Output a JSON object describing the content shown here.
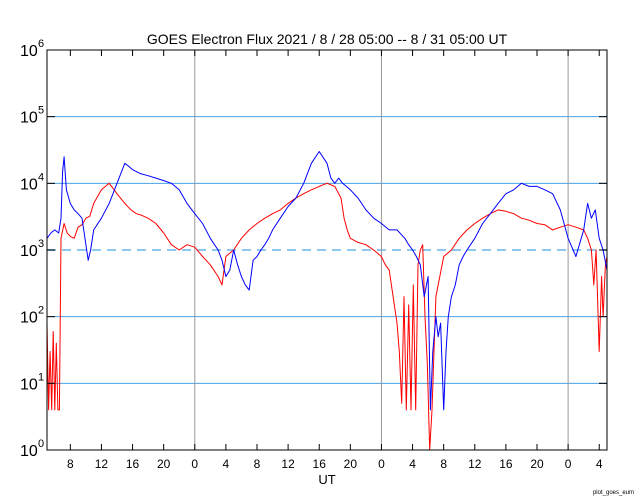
{
  "chart_data": {
    "type": "line",
    "title": "GOES Electron Flux   2021 /  8 / 28   05:00 --  8 / 31   05:00   UT",
    "xlabel": "UT",
    "ylabel": "",
    "yscale": "log",
    "ylim": [
      1,
      1000000
    ],
    "xlim_hours": [
      0,
      72
    ],
    "y_ticks": [
      {
        "base": "10",
        "exp": "0",
        "value": 1
      },
      {
        "base": "10",
        "exp": "1",
        "value": 10
      },
      {
        "base": "10",
        "exp": "2",
        "value": 100
      },
      {
        "base": "10",
        "exp": "3",
        "value": 1000
      },
      {
        "base": "10",
        "exp": "4",
        "value": 10000
      },
      {
        "base": "10",
        "exp": "5",
        "value": 100000
      },
      {
        "base": "10",
        "exp": "6",
        "value": 1000000
      }
    ],
    "x_ticks": [
      {
        "hour": 3,
        "label": "8"
      },
      {
        "hour": 7,
        "label": "12"
      },
      {
        "hour": 11,
        "label": "16"
      },
      {
        "hour": 15,
        "label": "20"
      },
      {
        "hour": 19,
        "label": "0"
      },
      {
        "hour": 23,
        "label": "4"
      },
      {
        "hour": 27,
        "label": "8"
      },
      {
        "hour": 31,
        "label": "12"
      },
      {
        "hour": 35,
        "label": "16"
      },
      {
        "hour": 39,
        "label": "20"
      },
      {
        "hour": 43,
        "label": "0"
      },
      {
        "hour": 47,
        "label": "4"
      },
      {
        "hour": 51,
        "label": "8"
      },
      {
        "hour": 55,
        "label": "12"
      },
      {
        "hour": 59,
        "label": "16"
      },
      {
        "hour": 63,
        "label": "20"
      },
      {
        "hour": 67,
        "label": "0"
      },
      {
        "hour": 71,
        "label": "4"
      }
    ],
    "day_boundaries_hours": [
      19,
      43,
      67
    ],
    "gridlines_y": [
      10,
      100,
      10000,
      100000
    ],
    "threshold": {
      "value": 1000,
      "style": "dashed"
    },
    "colors": {
      "series1": "#ff0000",
      "series2": "#0000ff",
      "grid": "#4aa3e6",
      "threshold": "#8ec8ee",
      "day_line": "#999999"
    },
    "series": [
      {
        "color": "#ff0000",
        "x": [
          0.0,
          0.2,
          0.4,
          0.6,
          0.8,
          1.0,
          1.2,
          1.4,
          1.6,
          1.8,
          2.2,
          2.6,
          3.0,
          3.5,
          4.0,
          4.5,
          5.0,
          5.5,
          6.0,
          7.0,
          8.0,
          9.0,
          10.0,
          10.8,
          11.5,
          12.2,
          13.0,
          14.0,
          15.0,
          16.0,
          17.0,
          18.0,
          19.0,
          20.0,
          21.0,
          22.0,
          22.5,
          23.0,
          23.5,
          24.0,
          25.0,
          26.0,
          27.0,
          28.0,
          29.0,
          30.0,
          31.0,
          32.0,
          33.0,
          34.0,
          35.0,
          36.0,
          37.0,
          37.8,
          38.2,
          38.6,
          39.0,
          40.0,
          41.0,
          42.0,
          43.0,
          43.5,
          44.0,
          44.5,
          45.0,
          45.3,
          45.6,
          45.9,
          46.2,
          46.5,
          46.8,
          47.1,
          47.4,
          47.7,
          48.0,
          48.3,
          48.6,
          48.9,
          49.2,
          49.5,
          50.0,
          51.0,
          52.0,
          53.0,
          54.0,
          55.0,
          56.0,
          57.0,
          58.0,
          59.0,
          60.0,
          61.0,
          62.0,
          63.0,
          64.0,
          65.0,
          66.0,
          67.0,
          68.0,
          69.0,
          69.5,
          70.0,
          70.3,
          70.6,
          71.0,
          71.3,
          71.5,
          71.8,
          72.0
        ],
        "values": [
          80,
          4,
          30,
          4,
          60,
          4,
          40,
          4,
          4,
          1500,
          2500,
          1800,
          1600,
          1500,
          2200,
          2400,
          3000,
          3200,
          5000,
          8000,
          10000,
          7000,
          5000,
          4000,
          3500,
          3300,
          3000,
          2500,
          1800,
          1200,
          1000,
          1200,
          1100,
          800,
          600,
          400,
          300,
          800,
          900,
          1000,
          1500,
          2000,
          2500,
          3000,
          3500,
          4000,
          5000,
          6000,
          7000,
          8000,
          9000,
          10000,
          9000,
          6000,
          3000,
          2000,
          1500,
          1300,
          1200,
          1000,
          800,
          600,
          500,
          200,
          80,
          30,
          5,
          200,
          4,
          150,
          4,
          300,
          4,
          600,
          1000,
          1200,
          100,
          20,
          1,
          4,
          200,
          800,
          1000,
          1500,
          2000,
          2500,
          3000,
          3500,
          4000,
          3800,
          3500,
          3000,
          2800,
          2500,
          2400,
          2000,
          2200,
          2400,
          2200,
          2000,
          1500,
          1000,
          300,
          1000,
          30,
          400,
          100,
          600,
          800
        ]
      },
      {
        "color": "#0000ff",
        "x": [
          0.0,
          0.5,
          1.0,
          1.5,
          1.8,
          2.0,
          2.2,
          2.5,
          3.0,
          3.5,
          4.0,
          4.5,
          5.0,
          5.3,
          5.6,
          6.0,
          7.0,
          8.0,
          9.0,
          10.0,
          10.5,
          11.0,
          12.0,
          13.0,
          14.0,
          15.0,
          16.0,
          17.0,
          18.0,
          19.0,
          20.0,
          21.0,
          22.0,
          22.5,
          23.0,
          23.5,
          24.0,
          24.5,
          25.0,
          25.5,
          26.0,
          26.5,
          27.0,
          27.5,
          28.0,
          28.5,
          29.0,
          30.0,
          31.0,
          32.0,
          33.0,
          34.0,
          35.0,
          36.0,
          36.5,
          37.0,
          37.5,
          38.0,
          38.5,
          39.0,
          40.0,
          41.0,
          42.0,
          43.0,
          44.0,
          45.0,
          46.0,
          46.5,
          47.0,
          47.5,
          48.0,
          48.5,
          49.0,
          49.3,
          49.6,
          50.0,
          50.3,
          50.6,
          51.0,
          51.3,
          51.6,
          52.0,
          52.5,
          53.0,
          53.5,
          54.0,
          55.0,
          56.0,
          57.0,
          58.0,
          59.0,
          60.0,
          61.0,
          62.0,
          63.0,
          64.0,
          65.0,
          66.0,
          67.0,
          68.0,
          69.0,
          69.5,
          70.0,
          70.5,
          71.0,
          71.5,
          72.0
        ],
        "values": [
          1500,
          1800,
          2000,
          1800,
          3000,
          15000,
          25000,
          8000,
          5000,
          4000,
          3500,
          3000,
          1200,
          700,
          1000,
          2000,
          3000,
          5000,
          10000,
          20000,
          18000,
          16000,
          14000,
          13000,
          12000,
          11000,
          10000,
          8000,
          5000,
          3500,
          2500,
          1500,
          1000,
          700,
          400,
          500,
          1000,
          600,
          400,
          300,
          250,
          700,
          800,
          1000,
          1200,
          1500,
          2000,
          3000,
          4500,
          6000,
          10000,
          20000,
          30000,
          20000,
          12000,
          10000,
          12000,
          10000,
          9000,
          8000,
          6000,
          4000,
          3000,
          2500,
          2000,
          2000,
          1500,
          1200,
          1000,
          800,
          600,
          200,
          400,
          4,
          30,
          100,
          50,
          80,
          4,
          30,
          100,
          200,
          300,
          600,
          800,
          1000,
          1500,
          2500,
          3500,
          5000,
          7000,
          8000,
          10000,
          9000,
          9000,
          8000,
          7000,
          4000,
          1500,
          800,
          2000,
          5000,
          3000,
          4000,
          1500,
          1000,
          500
        ]
      }
    ]
  },
  "footer": {
    "label": "plot_goes_eum"
  }
}
